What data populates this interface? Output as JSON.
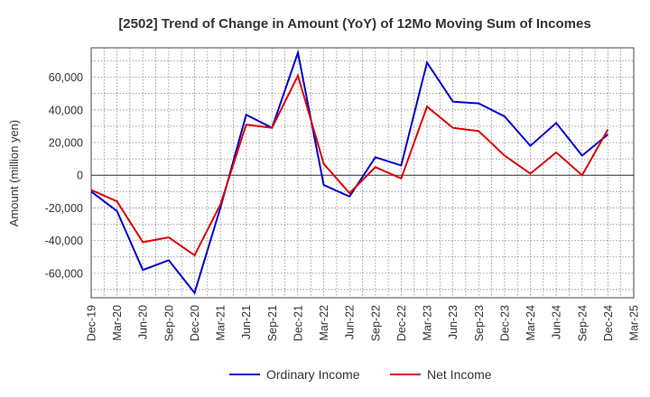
{
  "chart_data": {
    "type": "line",
    "title": "[2502]  Trend of Change in Amount (YoY) of 12Mo Moving Sum of Incomes",
    "xlabel": "",
    "ylabel": "Amount (million yen)",
    "categories": [
      "Dec-19",
      "Mar-20",
      "Jun-20",
      "Sep-20",
      "Dec-20",
      "Mar-21",
      "Jun-21",
      "Sep-21",
      "Dec-21",
      "Mar-22",
      "Jun-22",
      "Sep-22",
      "Dec-22",
      "Mar-23",
      "Jun-23",
      "Sep-23",
      "Dec-23",
      "Mar-24",
      "Jun-24",
      "Sep-24",
      "Dec-24",
      "Mar-25"
    ],
    "ylim": [
      -75000,
      78000
    ],
    "yticks": [
      -60000,
      -40000,
      -20000,
      0,
      20000,
      40000,
      60000
    ],
    "ytick_labels": [
      "-60,000",
      "-40,000",
      "-20,000",
      "0",
      "20,000",
      "40,000",
      "60,000"
    ],
    "grid": true,
    "legend_position": "bottom-center",
    "series": [
      {
        "name": "Ordinary Income",
        "color": "#0000cc",
        "values": [
          -10000,
          -22000,
          -58000,
          -52000,
          -72000,
          -20000,
          37000,
          29000,
          75000,
          -6000,
          -13000,
          11000,
          6000,
          69000,
          45000,
          44000,
          36000,
          18000,
          32000,
          12000,
          25000,
          null
        ]
      },
      {
        "name": "Net Income",
        "color": "#dd0000",
        "values": [
          -9000,
          -16000,
          -41000,
          -38000,
          -49000,
          -18000,
          31000,
          29000,
          61000,
          7000,
          -11000,
          5000,
          -2000,
          42000,
          29000,
          27000,
          12000,
          1000,
          14000,
          0,
          28000,
          null
        ]
      }
    ]
  }
}
